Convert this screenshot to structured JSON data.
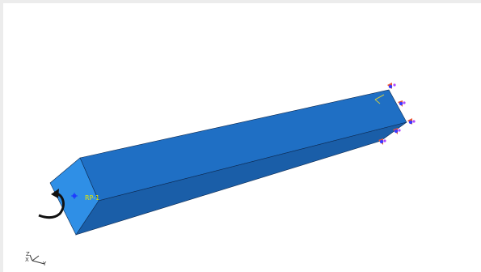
{
  "viewport": {
    "background": "#ffffff",
    "model": {
      "face_colors": {
        "front": "#2f8fe6",
        "top": "#1f6fc4",
        "side": "#1a5ea8"
      },
      "edge_color": "#0d2a52"
    },
    "reference_point": {
      "label": "RP-1"
    },
    "annotations": {
      "rotation_arrow": "curved-arrow-icon",
      "boundary_condition_markers": "constraint-marker-icons"
    },
    "triad": {
      "z": "Z",
      "x": "X",
      "y": "Y"
    }
  }
}
